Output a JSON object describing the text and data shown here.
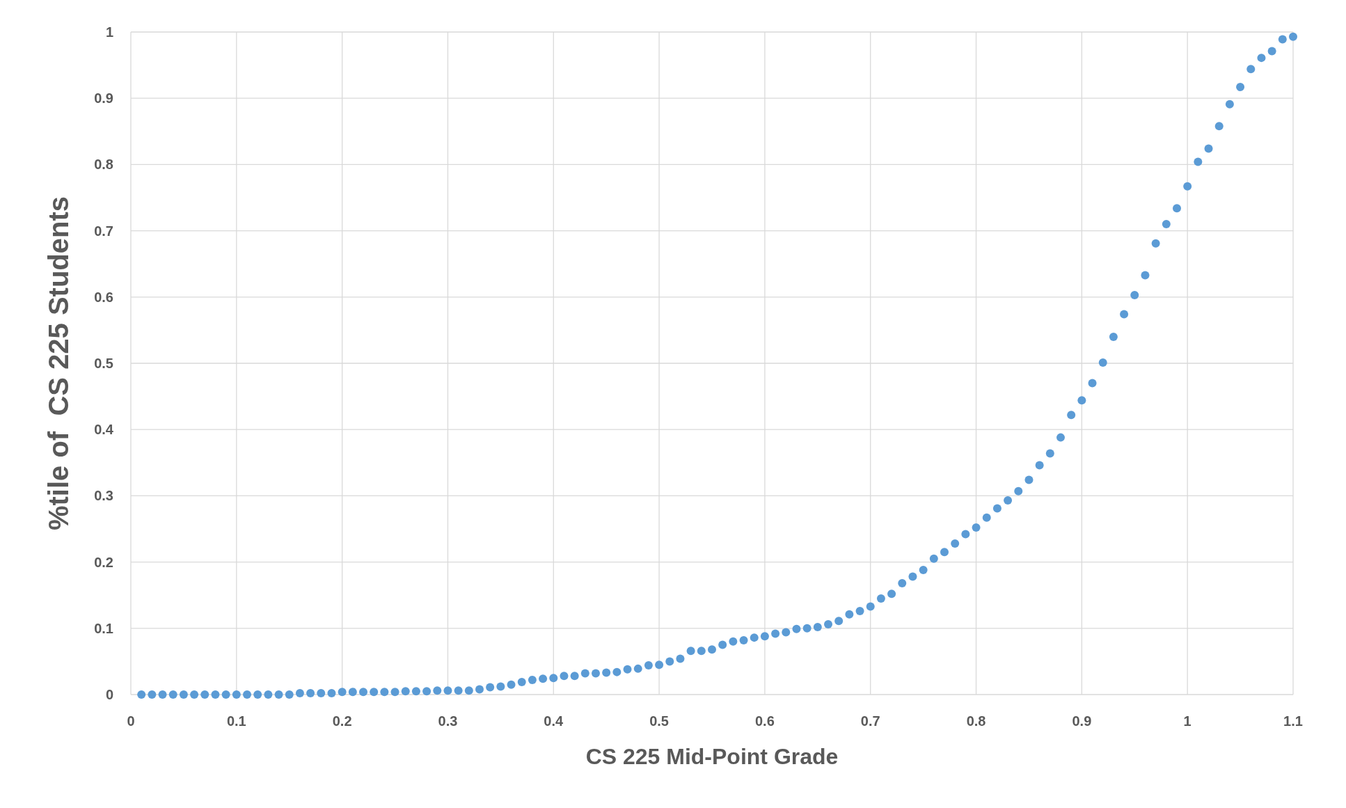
{
  "chart_data": {
    "type": "scatter",
    "xlabel": "CS 225 Mid-Point  Grade",
    "ylabel": "%tile of  CS 225 Students",
    "x": [
      0.01,
      0.02,
      0.03,
      0.04,
      0.05,
      0.06,
      0.07,
      0.08,
      0.09,
      0.1,
      0.11,
      0.12,
      0.13,
      0.14,
      0.15,
      0.16,
      0.17,
      0.18,
      0.19,
      0.2,
      0.21,
      0.22,
      0.23,
      0.24,
      0.25,
      0.26,
      0.27,
      0.28,
      0.29,
      0.3,
      0.31,
      0.32,
      0.33,
      0.34,
      0.35,
      0.36,
      0.37,
      0.38,
      0.39,
      0.4,
      0.41,
      0.42,
      0.43,
      0.44,
      0.45,
      0.46,
      0.47,
      0.48,
      0.49,
      0.5,
      0.51,
      0.52,
      0.53,
      0.54,
      0.55,
      0.56,
      0.57,
      0.58,
      0.59,
      0.6,
      0.61,
      0.62,
      0.63,
      0.64,
      0.65,
      0.66,
      0.67,
      0.68,
      0.69,
      0.7,
      0.71,
      0.72,
      0.73,
      0.74,
      0.75,
      0.76,
      0.77,
      0.78,
      0.79,
      0.8,
      0.81,
      0.82,
      0.83,
      0.84,
      0.85,
      0.86,
      0.87,
      0.88,
      0.89,
      0.9,
      0.91,
      0.92,
      0.93,
      0.94,
      0.95,
      0.96,
      0.97,
      0.98,
      0.99,
      1.0,
      1.01,
      1.02,
      1.03,
      1.04,
      1.05,
      1.06,
      1.07,
      1.08,
      1.09,
      1.1
    ],
    "series": [
      {
        "color": "#5b9bd5",
        "values": [
          0,
          0,
          0,
          0,
          0,
          0,
          0,
          0,
          0,
          0,
          0,
          0,
          0,
          0,
          0,
          0.002,
          0.002,
          0.002,
          0.002,
          0.004,
          0.004,
          0.004,
          0.004,
          0.004,
          0.004,
          0.005,
          0.005,
          0.005,
          0.006,
          0.006,
          0.006,
          0.006,
          0.008,
          0.011,
          0.012,
          0.015,
          0.019,
          0.022,
          0.024,
          0.025,
          0.028,
          0.028,
          0.032,
          0.032,
          0.033,
          0.034,
          0.038,
          0.039,
          0.044,
          0.045,
          0.05,
          0.054,
          0.066,
          0.066,
          0.068,
          0.075,
          0.08,
          0.082,
          0.086,
          0.088,
          0.092,
          0.094,
          0.099,
          0.1,
          0.102,
          0.106,
          0.111,
          0.121,
          0.126,
          0.133,
          0.145,
          0.152,
          0.168,
          0.178,
          0.188,
          0.205,
          0.215,
          0.228,
          0.242,
          0.252,
          0.267,
          0.281,
          0.293,
          0.307,
          0.324,
          0.346,
          0.364,
          0.388,
          0.422,
          0.444,
          0.47,
          0.501,
          0.54,
          0.574,
          0.603,
          0.633,
          0.681,
          0.71,
          0.734,
          0.767,
          0.804,
          0.824,
          0.858,
          0.891,
          0.917,
          0.944,
          0.961,
          0.971,
          0.989,
          0.993
        ]
      }
    ],
    "xlim": [
      0,
      1.1
    ],
    "xticks": [
      0,
      0.1,
      0.2,
      0.3,
      0.4,
      0.5,
      0.6,
      0.7,
      0.8,
      0.9,
      1,
      1.1
    ],
    "ylim": [
      0,
      1
    ],
    "yticks": [
      0,
      0.1,
      0.2,
      0.3,
      0.4,
      0.5,
      0.6,
      0.7,
      0.8,
      0.9,
      1
    ],
    "grid": true,
    "marker": "circle"
  }
}
